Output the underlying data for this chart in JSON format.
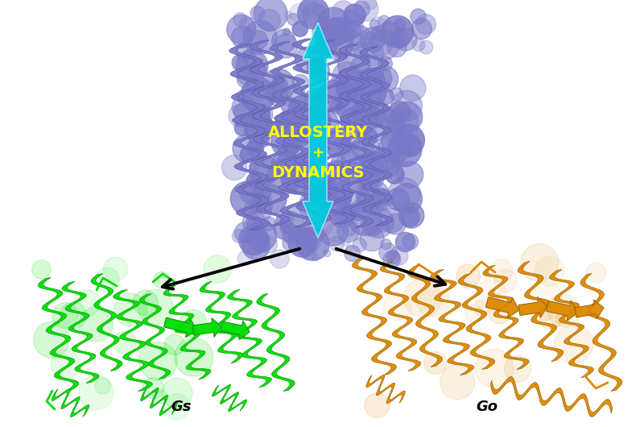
{
  "background_color": "#ffffff",
  "arrow_color": "#00ccdd",
  "arrow_text_color": "#ffff00",
  "arrow_text_line1": "ALLOSTERY",
  "arrow_text_line2": "+",
  "arrow_text_line3": "DYNAMICS",
  "gs_label": "Gs",
  "go_label": "Go",
  "gs_color": "#00dd00",
  "gs_dark": "#009900",
  "go_color": "#dd8800",
  "go_dark": "#996600",
  "protein_purple": "#7878c8",
  "protein_purple_dark": "#5555aa",
  "figsize": [
    8.0,
    5.3
  ],
  "dpi": 100
}
